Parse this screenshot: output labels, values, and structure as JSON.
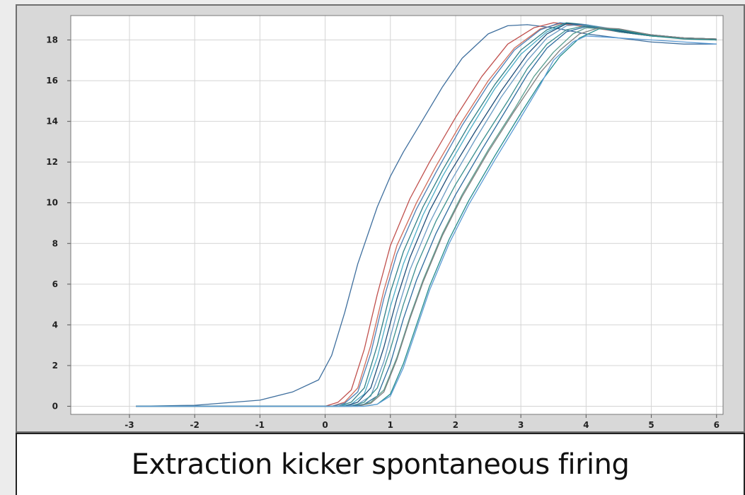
{
  "chart_data": {
    "type": "line",
    "title": "Extraction kicker spontaneous firing",
    "xlabel": "",
    "ylabel": "",
    "xlim": [
      -3.9,
      6.1
    ],
    "ylim": [
      -0.4,
      19.2
    ],
    "xticks": [
      -3,
      -2,
      -1,
      0,
      1,
      2,
      3,
      4,
      5,
      6
    ],
    "yticks": [
      0,
      2,
      4,
      6,
      8,
      10,
      12,
      14,
      16,
      18
    ],
    "grid": true,
    "legend": "none",
    "series": [
      {
        "color": "#3f6f9e",
        "x": [
          -2.9,
          -2,
          -1,
          -0.5,
          -0.1,
          0.1,
          0.3,
          0.5,
          0.8,
          1,
          1.2,
          1.5,
          1.8,
          2.1,
          2.5,
          2.8,
          3.1,
          3.5,
          4,
          4.5,
          5,
          5.5,
          6
        ],
        "y": [
          0,
          0.05,
          0.3,
          0.7,
          1.3,
          2.5,
          4.6,
          7,
          9.8,
          11.3,
          12.5,
          14.1,
          15.7,
          17.1,
          18.3,
          18.7,
          18.75,
          18.6,
          18.3,
          18.1,
          17.9,
          17.8,
          17.8
        ]
      },
      {
        "color": "#c0504d",
        "x": [
          -2.9,
          0,
          0.2,
          0.4,
          0.6,
          0.8,
          1,
          1.3,
          1.6,
          2,
          2.4,
          2.8,
          3.2,
          3.5,
          4,
          4.5,
          5,
          5.5,
          6
        ],
        "y": [
          0,
          0,
          0.2,
          0.8,
          2.8,
          5.5,
          7.9,
          10.2,
          12,
          14.2,
          16.2,
          17.8,
          18.6,
          18.85,
          18.7,
          18.4,
          18.2,
          18.1,
          18
        ]
      },
      {
        "color": "#cf6b5a",
        "x": [
          -2.9,
          0.1,
          0.3,
          0.5,
          0.7,
          0.9,
          1.1,
          1.4,
          1.7,
          2.1,
          2.5,
          2.9,
          3.3,
          3.6,
          4,
          4.5,
          5,
          5.5,
          6
        ],
        "y": [
          0,
          0,
          0.2,
          0.9,
          3,
          5.7,
          7.9,
          10,
          11.8,
          14,
          16,
          17.6,
          18.55,
          18.8,
          18.65,
          18.4,
          18.2,
          18.1,
          18
        ]
      },
      {
        "color": "#4a7fb5",
        "x": [
          -2.9,
          0.1,
          0.3,
          0.5,
          0.7,
          0.9,
          1.1,
          1.4,
          1.7,
          2.1,
          2.5,
          2.9,
          3.3,
          3.6,
          4,
          4.5,
          5,
          5.5,
          6
        ],
        "y": [
          0,
          0,
          0.15,
          0.7,
          2.6,
          5.3,
          7.5,
          9.7,
          11.5,
          13.8,
          15.8,
          17.5,
          18.5,
          18.85,
          18.7,
          18.4,
          18.2,
          18.1,
          18
        ]
      },
      {
        "color": "#2f7f86",
        "x": [
          -2.9,
          0.2,
          0.4,
          0.6,
          0.8,
          1,
          1.2,
          1.5,
          1.8,
          2.2,
          2.6,
          3,
          3.4,
          3.7,
          4,
          4.5,
          5,
          5.5,
          6
        ],
        "y": [
          0,
          0,
          0.2,
          0.9,
          3,
          5.6,
          7.6,
          9.8,
          11.6,
          13.8,
          15.8,
          17.5,
          18.5,
          18.85,
          18.75,
          18.4,
          18.2,
          18.1,
          18
        ]
      },
      {
        "color": "#4bacc6",
        "x": [
          -2.9,
          0.2,
          0.4,
          0.6,
          0.8,
          1,
          1.2,
          1.5,
          1.8,
          2.2,
          2.6,
          3,
          3.4,
          3.7,
          4,
          4.5,
          5,
          5.5,
          6
        ],
        "y": [
          0,
          0,
          0.1,
          0.6,
          2.4,
          4.9,
          7,
          9.4,
          11.3,
          13.5,
          15.6,
          17.3,
          18.4,
          18.8,
          18.75,
          18.45,
          18.2,
          18.1,
          18.05
        ]
      },
      {
        "color": "#1f4e79",
        "x": [
          -2.9,
          0.3,
          0.5,
          0.7,
          0.9,
          1.1,
          1.3,
          1.6,
          1.9,
          2.3,
          2.7,
          3.1,
          3.4,
          3.7,
          4,
          4.5,
          5,
          5.5,
          6
        ],
        "y": [
          0,
          0,
          0.2,
          0.9,
          2.9,
          5.3,
          7.3,
          9.6,
          11.4,
          13.5,
          15.5,
          17.3,
          18.3,
          18.8,
          18.75,
          18.45,
          18.2,
          18.1,
          18.05
        ]
      },
      {
        "color": "#6b9bc3",
        "x": [
          -2.9,
          0.3,
          0.5,
          0.7,
          0.9,
          1.1,
          1.3,
          1.6,
          1.9,
          2.3,
          2.7,
          3.1,
          3.4,
          3.7,
          4,
          4.5,
          5,
          5.5,
          6
        ],
        "y": [
          0,
          0,
          0.1,
          0.5,
          2.2,
          4.6,
          6.7,
          9,
          10.9,
          13.1,
          15.2,
          17,
          18.1,
          18.7,
          18.75,
          18.5,
          18.25,
          18.1,
          18.05
        ]
      },
      {
        "color": "#3a8f8f",
        "x": [
          -2.9,
          0.4,
          0.6,
          0.8,
          1,
          1.2,
          1.4,
          1.7,
          2,
          2.4,
          2.8,
          3.1,
          3.4,
          3.7,
          4,
          4.5,
          5,
          5.5,
          6
        ],
        "y": [
          0,
          0,
          0.2,
          0.9,
          2.8,
          5,
          6.9,
          9.1,
          10.9,
          13,
          15,
          16.6,
          17.8,
          18.5,
          18.7,
          18.5,
          18.25,
          18.1,
          18.05
        ]
      },
      {
        "color": "#2e6c9e",
        "x": [
          -2.9,
          0.4,
          0.6,
          0.8,
          1,
          1.2,
          1.4,
          1.7,
          2,
          2.4,
          2.8,
          3.1,
          3.4,
          3.7,
          4,
          4.5,
          5,
          5.5,
          6
        ],
        "y": [
          0,
          0,
          0.1,
          0.5,
          2.1,
          4.3,
          6.2,
          8.5,
          10.4,
          12.6,
          14.7,
          16.3,
          17.6,
          18.4,
          18.65,
          18.5,
          18.25,
          18.1,
          18.05
        ]
      },
      {
        "color": "#5a9e8f",
        "x": [
          -2.9,
          0.5,
          0.7,
          0.9,
          1.1,
          1.3,
          1.5,
          1.8,
          2.1,
          2.5,
          2.9,
          3.2,
          3.5,
          3.8,
          4,
          4.5,
          5,
          5.5,
          6
        ],
        "y": [
          0,
          0,
          0.2,
          0.8,
          2.4,
          4.4,
          6.2,
          8.5,
          10.4,
          12.6,
          14.6,
          16.2,
          17.4,
          18.3,
          18.6,
          18.5,
          18.2,
          18.1,
          18.05
        ]
      },
      {
        "color": "#228b8b",
        "x": [
          -2.9,
          0.6,
          0.8,
          1,
          1.2,
          1.4,
          1.6,
          1.9,
          2.2,
          2.6,
          3,
          3.3,
          3.6,
          3.9,
          4.2,
          4.5,
          5,
          5.5,
          6
        ],
        "y": [
          0,
          0,
          0.1,
          0.6,
          2.1,
          4,
          5.9,
          8.2,
          10.1,
          12.3,
          14.4,
          15.9,
          17.2,
          18.1,
          18.55,
          18.5,
          18.2,
          18.05,
          18
        ]
      },
      {
        "color": "#7f7f7f",
        "x": [
          -2.9,
          0.5,
          0.7,
          0.9,
          1.1,
          1.3,
          1.5,
          1.8,
          2.1,
          2.5,
          2.9,
          3.3,
          3.6,
          3.9,
          4.2,
          4.5,
          5,
          5.5,
          6
        ],
        "y": [
          0,
          0,
          0.15,
          0.7,
          2.3,
          4.3,
          6.1,
          8.4,
          10.3,
          12.5,
          14.5,
          16.4,
          17.5,
          18.3,
          18.6,
          18.55,
          18.25,
          18.1,
          18.05
        ]
      },
      {
        "color": "#5b9bd5",
        "x": [
          -2.9,
          0.6,
          0.8,
          1,
          1.2,
          1.4,
          1.6,
          1.9,
          2.2,
          2.6,
          3,
          3.3,
          3.5,
          3.8,
          4,
          4.5,
          5,
          5.5,
          6
        ],
        "y": [
          0,
          0,
          0.1,
          0.5,
          1.9,
          3.8,
          5.7,
          8,
          9.9,
          12.1,
          14.2,
          15.8,
          17,
          17.9,
          18.2,
          18.1,
          18,
          17.9,
          17.8
        ]
      }
    ]
  },
  "ui": {
    "scroll_glyph_up": "▴",
    "scroll_glyph_down": "▾"
  }
}
